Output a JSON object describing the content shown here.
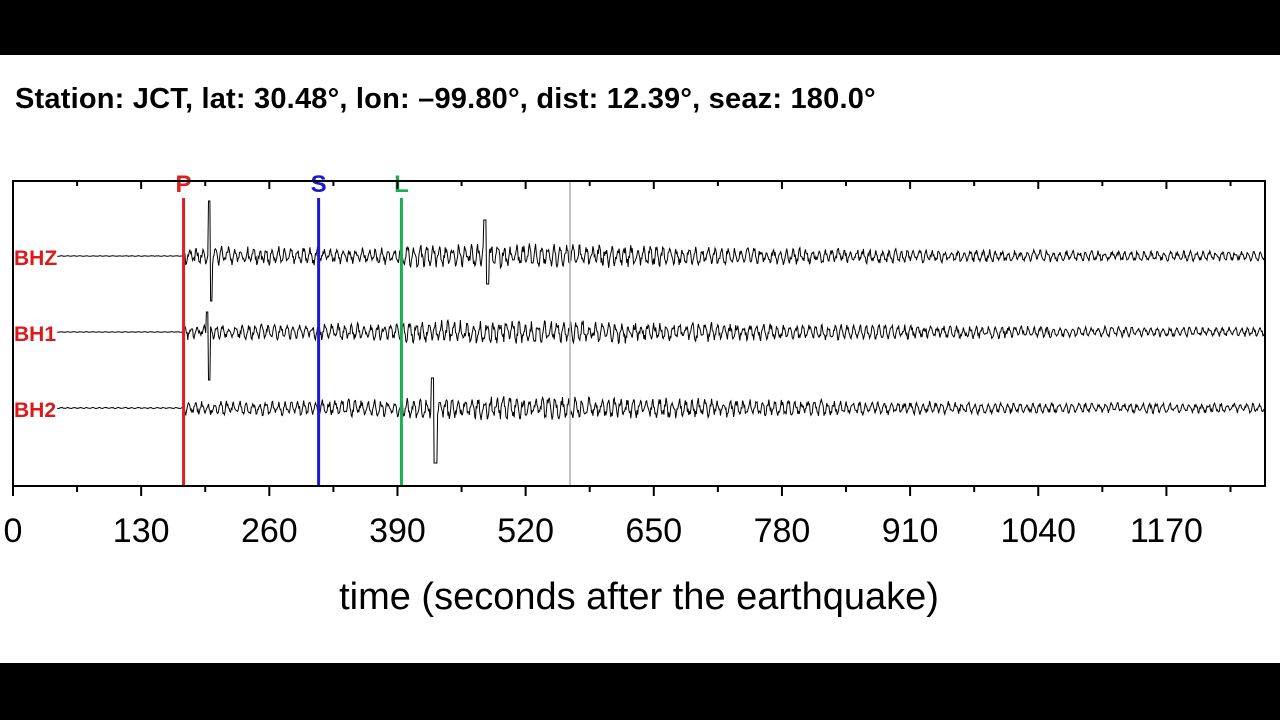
{
  "title": "Station: JCT, lat: 30.48°, lon: –99.80°, dist: 12.39°, seaz: 180.0°",
  "chart_data": {
    "type": "line",
    "xlabel": "time (seconds after the earthquake)",
    "xlim": [
      0,
      1270
    ],
    "xticks": [
      "0",
      "130",
      "260",
      "390",
      "520",
      "650",
      "780",
      "910",
      "1040",
      "1170"
    ],
    "tick_values": [
      0,
      130,
      260,
      390,
      520,
      650,
      780,
      910,
      1040,
      1170
    ],
    "grid": false,
    "channels": [
      "BHZ",
      "BH1",
      "BH2"
    ],
    "phase_markers": [
      {
        "label": "P",
        "time": 173,
        "color": "#e02020"
      },
      {
        "label": "S",
        "time": 310,
        "color": "#1a1ad0"
      },
      {
        "label": "L",
        "time": 394,
        "color": "#18b050"
      }
    ],
    "reference_line_time": 565,
    "colors": {
      "channel_label": "#e01818",
      "trace": "#000000",
      "reference_line": "#b0b0b0"
    }
  }
}
